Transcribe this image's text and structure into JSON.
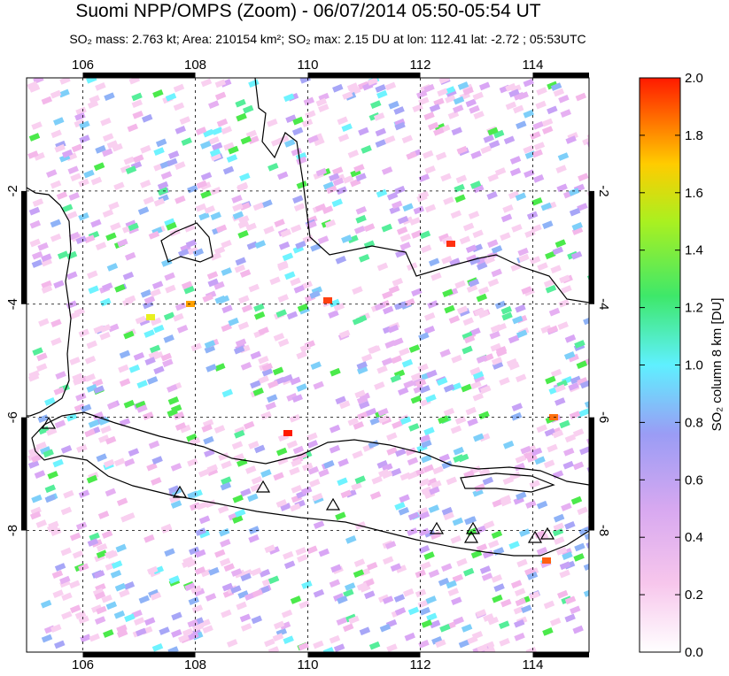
{
  "title": "Suomi NPP/OMPS (Zoom) - 06/07/2014 05:50-05:54 UT",
  "subtitle": "SO₂ mass: 2.763 kt; Area: 210154 km²; SO₂ max: 2.15 DU at lon: 112.41 lat: -2.72 ; 05:53UTC",
  "map": {
    "lonlim": [
      105,
      115
    ],
    "latlim": [
      -10.15,
      0
    ],
    "lon_ticks": [
      106,
      108,
      110,
      112,
      114
    ],
    "lat_ticks": [
      -2,
      -4,
      -6,
      -8
    ]
  },
  "colorbar": {
    "label": "SO₂ column 8 km [DU]",
    "range": [
      0,
      2
    ],
    "ticks": [
      {
        "value": 0,
        "label": "0.0"
      },
      {
        "value": 0.2,
        "label": "0.2"
      },
      {
        "value": 0.4,
        "label": "0.4"
      },
      {
        "value": 0.6,
        "label": "0.6"
      },
      {
        "value": 0.8,
        "label": "0.8"
      },
      {
        "value": 1,
        "label": "1.0"
      },
      {
        "value": 1.2,
        "label": "1.2"
      },
      {
        "value": 1.4,
        "label": "1.4"
      },
      {
        "value": 1.6,
        "label": "1.6"
      },
      {
        "value": 1.8,
        "label": "1.8"
      },
      {
        "value": 2,
        "label": "2.0"
      }
    ]
  }
}
